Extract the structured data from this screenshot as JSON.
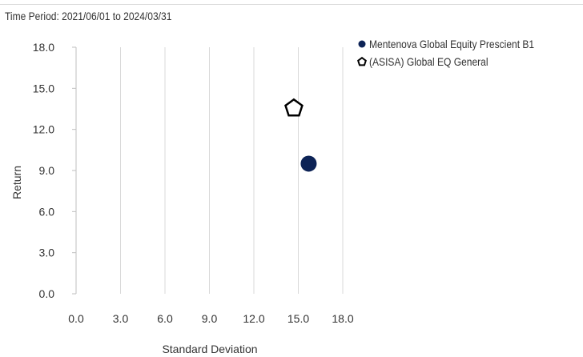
{
  "period": "Time Period: 2021/06/01 to 2024/03/31",
  "chart_data": {
    "type": "scatter",
    "title": "",
    "xlabel": "Standard Deviation",
    "ylabel": "Return",
    "xlim": [
      0,
      18
    ],
    "ylim": [
      0,
      18
    ],
    "xticks": [
      "0.0",
      "3.0",
      "6.0",
      "9.0",
      "12.0",
      "15.0",
      "18.0"
    ],
    "yticks": [
      "0.0",
      "3.0",
      "6.0",
      "9.0",
      "12.0",
      "15.0",
      "18.0"
    ],
    "grid": "vertical",
    "legend_position": "right",
    "series": [
      {
        "name": "Mentenova Global Equity Prescient B1",
        "marker": "circle",
        "color": "#0d2356",
        "points": [
          {
            "x": 15.7,
            "y": 9.5
          }
        ]
      },
      {
        "name": "(ASISA) Global EQ General",
        "marker": "pentagon",
        "color": "#000000",
        "points": [
          {
            "x": 14.7,
            "y": 13.6
          }
        ]
      }
    ]
  }
}
